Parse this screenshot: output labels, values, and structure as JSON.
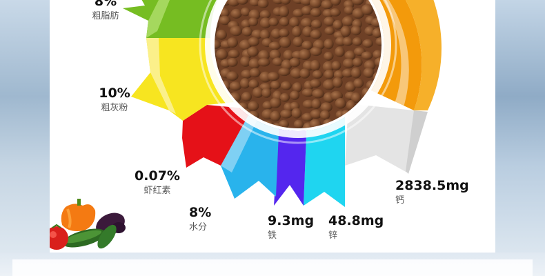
{
  "nutrients": [
    {
      "id": "crude-fat",
      "value": "8%",
      "name": "粗脂肪",
      "color": "#7cc02a"
    },
    {
      "id": "crude-ash",
      "value": "10%",
      "name": "粗灰粉",
      "color": "#f7e52b"
    },
    {
      "id": "astaxanthin",
      "value": "0.07%",
      "name": "虾红素",
      "color": "#e8141b"
    },
    {
      "id": "moisture",
      "value": "8%",
      "name": "水分",
      "color": "#2eb9ef"
    },
    {
      "id": "iron",
      "value": "9.3mg",
      "name": "铁",
      "color": "#5a2cf0"
    },
    {
      "id": "zinc",
      "value": "48.8mg",
      "name": "锌",
      "color": "#24d6f2"
    },
    {
      "id": "calcium",
      "value": "2838.5mg",
      "name": "钙",
      "color": "#e5e5e5"
    }
  ],
  "colors": {
    "orange": "#f79a09",
    "orange_dark": "#e67e00"
  }
}
